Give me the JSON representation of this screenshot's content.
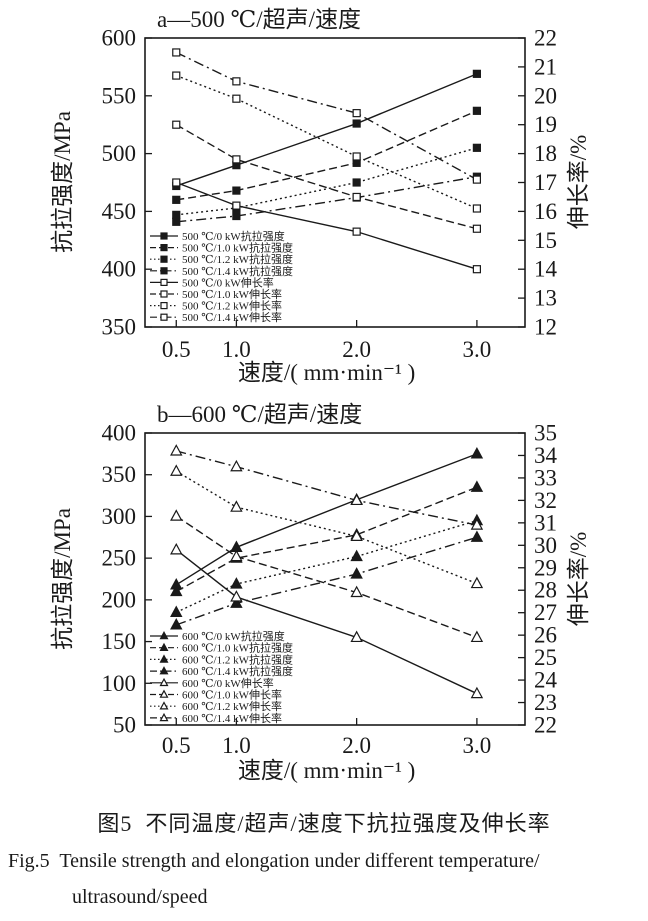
{
  "figure": {
    "caption_zh": "图5  不同温度/超声/速度下抗拉强度及伸长率",
    "caption_en_line1": "Fig.5  Tensile strength and elongation under different temperature/",
    "caption_en_line2": "ultrasound/speed"
  },
  "chart_data": [
    {
      "type": "line",
      "title": "a—500 ℃/超声/速度",
      "xlabel": "速度/( mm·min⁻¹ )",
      "ylabel_left": "抗拉强度/MPa",
      "ylabel_right": "伸长率/%",
      "marker": "square",
      "grid": false,
      "legend_position": "inside-lower-left",
      "x": [
        0.5,
        1.0,
        2.0,
        3.0
      ],
      "xticks": [
        "0.5",
        "1.0",
        "2.0",
        "3.0"
      ],
      "xlim": [
        0.24,
        3.4
      ],
      "ylim_left": [
        350,
        600
      ],
      "yticks_left": [
        350,
        400,
        450,
        500,
        550,
        600
      ],
      "ylim_right": [
        12,
        22
      ],
      "yticks_right": [
        12,
        13,
        14,
        15,
        16,
        17,
        18,
        19,
        20,
        21,
        22
      ],
      "series": [
        {
          "name": "500 ℃/0 kW抗拉强度",
          "axis": "left",
          "fill": "filled",
          "dash": "solid",
          "values": [
            472,
            490,
            526,
            569
          ]
        },
        {
          "name": "500 ℃/1.0 kW抗拉强度",
          "axis": "left",
          "fill": "filled",
          "dash": "dashed",
          "values": [
            460,
            468,
            492,
            537
          ]
        },
        {
          "name": "500 ℃/1.2 kW抗拉强度",
          "axis": "left",
          "fill": "filled",
          "dash": "dotted",
          "values": [
            447,
            453,
            475,
            505
          ]
        },
        {
          "name": "500 ℃/1.4 kW抗拉强度",
          "axis": "left",
          "fill": "filled",
          "dash": "dashdot",
          "values": [
            441,
            446,
            462,
            480
          ]
        },
        {
          "name": "500 ℃/0 kW伸长率",
          "axis": "right",
          "fill": "open",
          "dash": "solid",
          "values": [
            17.0,
            16.2,
            15.3,
            14.0
          ]
        },
        {
          "name": "500 ℃/1.0 kW伸长率",
          "axis": "right",
          "fill": "open",
          "dash": "dashed",
          "values": [
            19.0,
            17.8,
            16.5,
            15.4
          ]
        },
        {
          "name": "500 ℃/1.2 kW伸长率",
          "axis": "right",
          "fill": "open",
          "dash": "dotted",
          "values": [
            20.7,
            19.9,
            17.9,
            16.1
          ]
        },
        {
          "name": "500 ℃/1.4 kW伸长率",
          "axis": "right",
          "fill": "open",
          "dash": "dashdot",
          "values": [
            21.5,
            20.5,
            19.4,
            17.1
          ]
        }
      ]
    },
    {
      "type": "line",
      "title": "b—600 ℃/超声/速度",
      "xlabel": "速度/( mm·min⁻¹ )",
      "ylabel_left": "抗拉强度/MPa",
      "ylabel_right": "伸长率/%",
      "marker": "triangle",
      "grid": false,
      "legend_position": "inside-lower-left",
      "x": [
        0.5,
        1.0,
        2.0,
        3.0
      ],
      "xticks": [
        "0.5",
        "1.0",
        "2.0",
        "3.0"
      ],
      "xlim": [
        0.24,
        3.4
      ],
      "ylim_left": [
        50,
        400
      ],
      "yticks_left": [
        50,
        100,
        150,
        200,
        250,
        300,
        350,
        400
      ],
      "ylim_right": [
        22,
        35
      ],
      "yticks_right": [
        22,
        23,
        24,
        25,
        26,
        27,
        28,
        29,
        30,
        31,
        32,
        33,
        34,
        35
      ],
      "series": [
        {
          "name": "600 ℃/0 kW抗拉强度",
          "axis": "left",
          "fill": "filled",
          "dash": "solid",
          "values": [
            218,
            263,
            320,
            375
          ]
        },
        {
          "name": "600 ℃/1.0 kW抗拉强度",
          "axis": "left",
          "fill": "filled",
          "dash": "dashed",
          "values": [
            210,
            250,
            278,
            335
          ]
        },
        {
          "name": "600 ℃/1.2 kW抗拉强度",
          "axis": "left",
          "fill": "filled",
          "dash": "dotted",
          "values": [
            185,
            219,
            252,
            295
          ]
        },
        {
          "name": "600 ℃/1.4 kW抗拉强度",
          "axis": "left",
          "fill": "filled",
          "dash": "dashdot",
          "values": [
            170,
            196,
            231,
            275
          ]
        },
        {
          "name": "600 ℃/0 kW伸长率",
          "axis": "right",
          "fill": "open",
          "dash": "solid",
          "values": [
            29.8,
            27.7,
            25.9,
            23.4
          ]
        },
        {
          "name": "600 ℃/1.0 kW伸长率",
          "axis": "right",
          "fill": "open",
          "dash": "dashed",
          "values": [
            31.3,
            29.5,
            27.9,
            25.9
          ]
        },
        {
          "name": "600 ℃/1.2 kW伸长率",
          "axis": "right",
          "fill": "open",
          "dash": "dotted",
          "values": [
            33.3,
            31.7,
            30.4,
            28.3
          ]
        },
        {
          "name": "600 ℃/1.4 kW伸长率",
          "axis": "right",
          "fill": "open",
          "dash": "dashdot",
          "values": [
            34.2,
            33.5,
            32.0,
            30.9
          ]
        }
      ]
    }
  ]
}
